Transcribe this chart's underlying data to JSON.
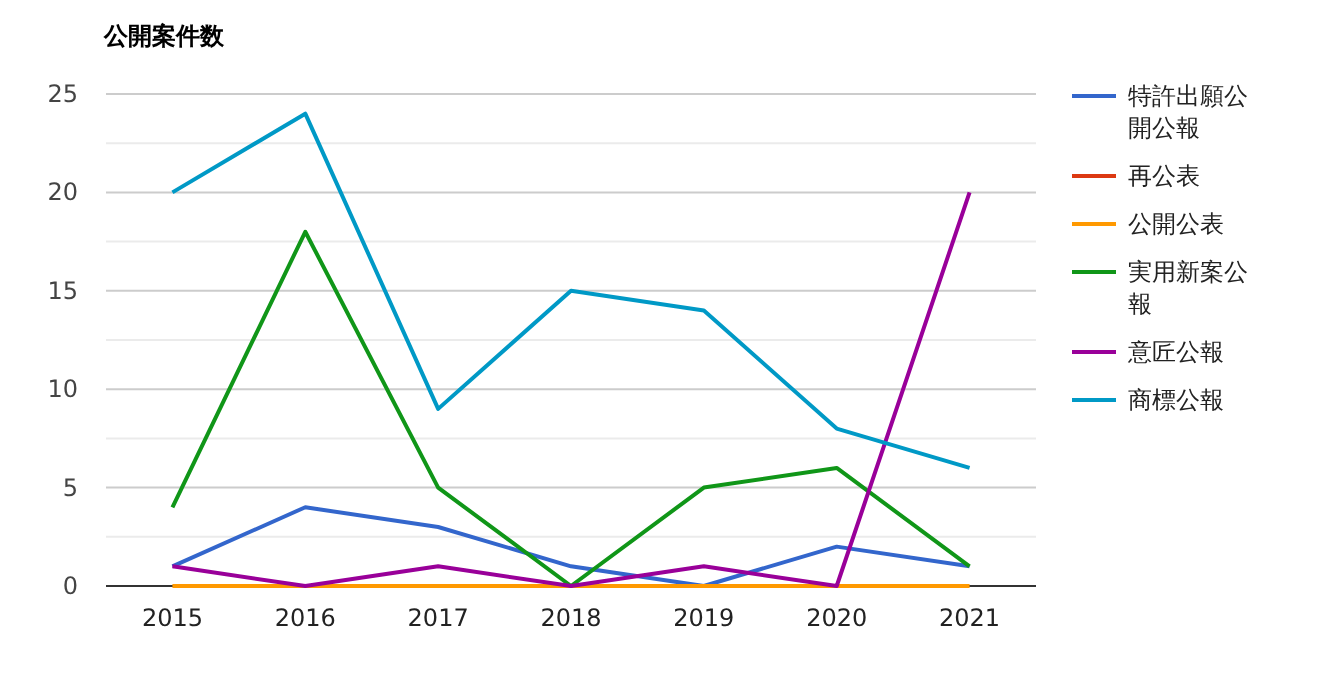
{
  "chart_data": {
    "type": "line",
    "title": "公開案件数",
    "categories": [
      "2015",
      "2016",
      "2017",
      "2018",
      "2019",
      "2020",
      "2021"
    ],
    "series": [
      {
        "name": "特許出願公開公報",
        "color": "#3366cc",
        "values": [
          1,
          4,
          3,
          1,
          0,
          2,
          1
        ]
      },
      {
        "name": "再公表",
        "color": "#dc3912",
        "values": [
          null,
          null,
          null,
          null,
          null,
          null,
          null
        ]
      },
      {
        "name": "公開公表",
        "color": "#ff9900",
        "values": [
          0,
          0,
          0,
          0,
          0,
          0,
          0
        ]
      },
      {
        "name": "実用新案公報",
        "color": "#109618",
        "values": [
          4,
          18,
          5,
          0,
          5,
          6,
          1
        ]
      },
      {
        "name": "意匠公報",
        "color": "#990099",
        "values": [
          1,
          0,
          1,
          0,
          1,
          0,
          20
        ]
      },
      {
        "name": "商標公報",
        "color": "#0099c6",
        "values": [
          20,
          24,
          9,
          15,
          14,
          8,
          6
        ]
      }
    ],
    "ylim": [
      0,
      25
    ],
    "yticks": [
      0,
      {
        "value": 2.5,
        "label": null
      },
      5,
      {
        "value": 7.5,
        "label": null
      },
      10,
      {
        "value": 12.5,
        "label": null
      },
      15,
      {
        "value": 17.5,
        "label": null
      },
      20,
      {
        "value": 22.5,
        "label": null
      },
      25
    ],
    "grid": "y",
    "legend": "right",
    "marker": "none",
    "line_style": "solid"
  }
}
